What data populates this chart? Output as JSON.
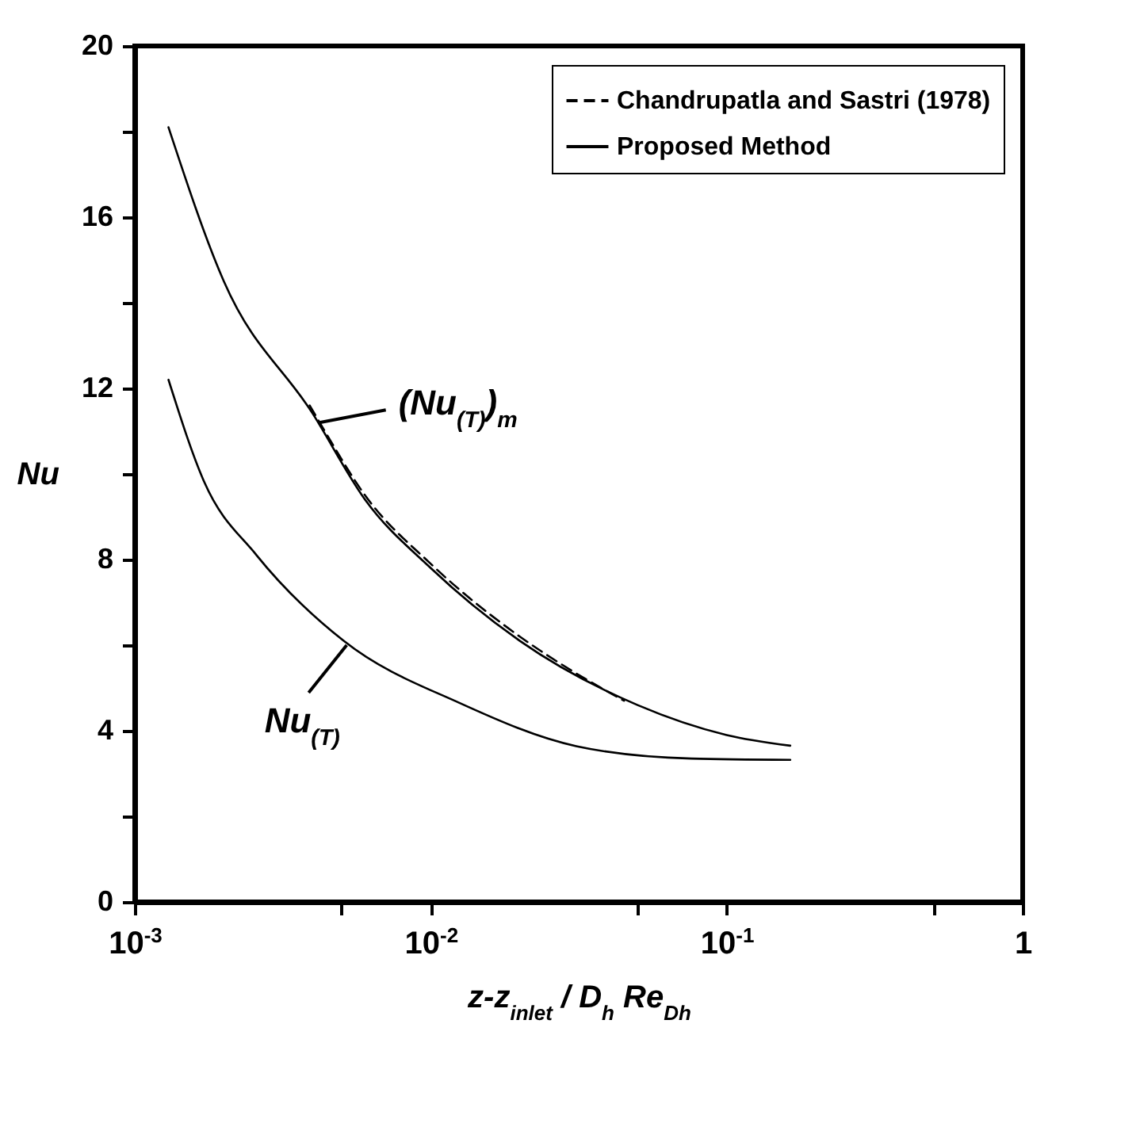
{
  "chart_data": {
    "type": "line",
    "xlabel": "z-z$_{inlet}$ / D$_{h}$ Re$_{Dh}$",
    "ylabel": "Nu",
    "log": "x",
    "xlim": [
      0.001,
      1
    ],
    "ylim": [
      0,
      20
    ],
    "xticks": [
      {
        "value": 0.001,
        "label": "10$^{-3}$"
      },
      {
        "value": 0.005,
        "label": null
      },
      {
        "value": 0.01,
        "label": "10$^{-2}$"
      },
      {
        "value": 0.05,
        "label": null
      },
      {
        "value": 0.1,
        "label": "10$^{-1}$"
      },
      {
        "value": 0.5,
        "label": null
      },
      {
        "value": 1,
        "label": "1"
      }
    ],
    "yticks": [
      0,
      {
        "value": 2,
        "label": null
      },
      4,
      {
        "value": 6,
        "label": null
      },
      8,
      {
        "value": 10,
        "label": null
      },
      12,
      {
        "value": 14,
        "label": null
      },
      16,
      {
        "value": 18,
        "label": null
      },
      20
    ],
    "grid": false,
    "legend": "top right",
    "marker": "none",
    "series": [
      {
        "name": "Chandrupatla and Sastri (1978)",
        "color": "#000000",
        "line_style": "dashed",
        "x": [
          0.0039,
          0.0043,
          0.006,
          0.01,
          0.02,
          0.03,
          0.045
        ],
        "values": [
          11.6,
          11.1,
          9.5,
          7.9,
          6.2,
          5.4,
          4.7
        ]
      },
      {
        "name": "Proposed Method",
        "color": "#000000",
        "line_style": "solid",
        "x": [
          0.0013,
          0.002,
          0.004,
          0.006,
          0.01,
          0.02,
          0.05,
          0.1,
          0.164
        ],
        "values": [
          18.1,
          14.5,
          11.4,
          9.4,
          7.8,
          6.1,
          4.6,
          3.9,
          3.65
        ]
      },
      {
        "color": "#000000",
        "line_style": "solid",
        "x": [
          0.0013,
          0.00172,
          0.00258,
          0.00508,
          0.0125,
          0.031,
          0.076,
          0.164
        ],
        "values": [
          12.2,
          9.8,
          8.1,
          6.1,
          4.65,
          3.64,
          3.35,
          3.32
        ]
      }
    ],
    "annotations": [
      {
        "text": "(Nu$_{(T)}$)$_{m}$",
        "x": 0.0042,
        "y": 11.2
      },
      {
        "text": "Nu$_{(T)}$",
        "x": 0.0052,
        "y": 6.0
      }
    ]
  }
}
